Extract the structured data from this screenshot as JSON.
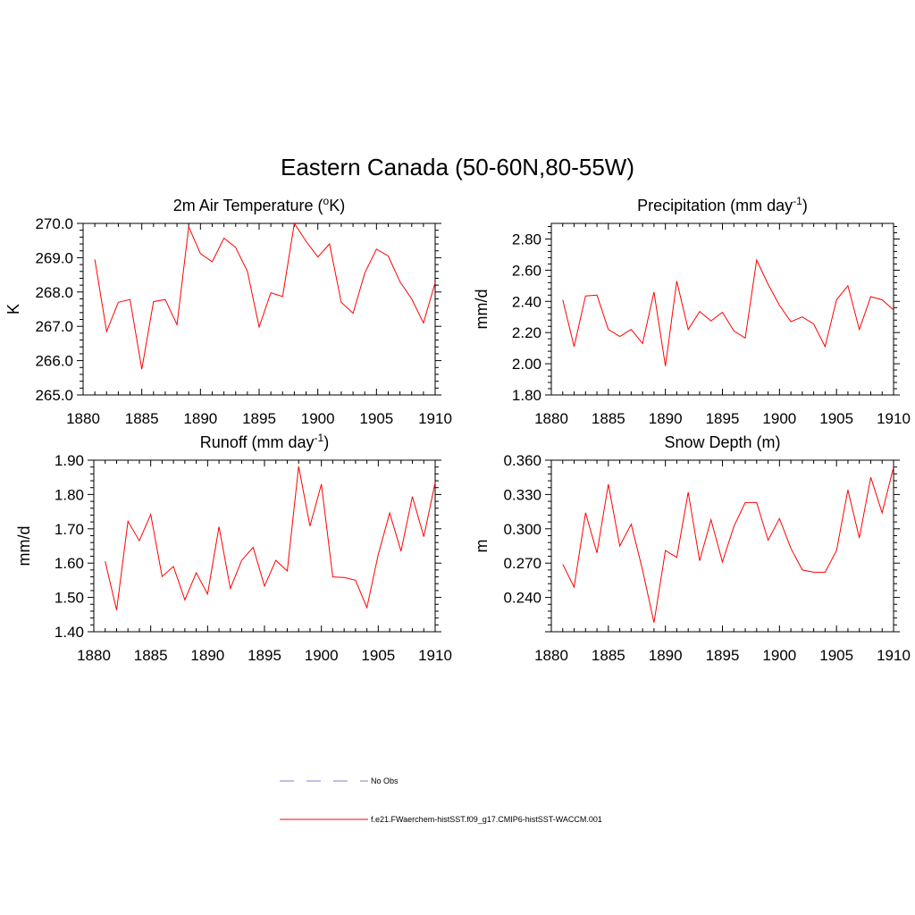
{
  "figure": {
    "title": "Eastern Canada (50-60N,80-55W)",
    "legend": [
      {
        "label": "No Obs",
        "color": "#9999dd",
        "style": "dashed"
      },
      {
        "label": "f.e21.FWaerchem-histSST.f09_g17.CMIP6-histSST-WACCM.001",
        "color": "#ff0000",
        "style": "solid"
      }
    ]
  },
  "chart_data": [
    {
      "type": "line",
      "title": "2m Air Temperature (",
      "title_sup": "o",
      "title_tail": "K)",
      "ylabel": "K",
      "xlim": [
        1880,
        1910
      ],
      "ylim": [
        265,
        270
      ],
      "xticks": [
        "1880",
        "1885",
        "1890",
        "1895",
        "1900",
        "1905",
        "1910"
      ],
      "yticks": [
        "265.0",
        "266.0",
        "267.0",
        "268.0",
        "269.0",
        "270.0"
      ],
      "color": "#ff0000",
      "series": [
        {
          "x": [
            1881,
            1882,
            1883,
            1884,
            1885,
            1886,
            1887,
            1888,
            1889,
            1890,
            1891,
            1892,
            1893,
            1894,
            1895,
            1896,
            1897,
            1898,
            1899,
            1900,
            1901,
            1902,
            1903,
            1904,
            1905,
            1906,
            1907,
            1908,
            1909,
            1910
          ],
          "values": [
            268.95,
            266.85,
            267.7,
            267.78,
            265.75,
            267.72,
            267.78,
            267.05,
            269.9,
            269.12,
            268.88,
            269.57,
            269.3,
            268.6,
            266.98,
            267.98,
            267.87,
            270.0,
            269.48,
            269.02,
            269.4,
            267.7,
            267.38,
            268.55,
            269.25,
            269.05,
            268.3,
            267.8,
            267.1,
            268.27
          ]
        }
      ]
    },
    {
      "type": "line",
      "title": "Precipitation (mm day",
      "title_sup": "-1",
      "title_tail": ")",
      "ylabel": "mm/d",
      "xlim": [
        1880,
        1910
      ],
      "ylim": [
        1.8,
        2.9
      ],
      "xticks": [
        "1880",
        "1885",
        "1890",
        "1895",
        "1900",
        "1905",
        "1910"
      ],
      "yticks": [
        "1.80",
        "2.00",
        "2.20",
        "2.40",
        "2.60",
        "2.80"
      ],
      "color": "#ff0000",
      "series": [
        {
          "x": [
            1881,
            1882,
            1883,
            1884,
            1885,
            1886,
            1887,
            1888,
            1889,
            1890,
            1891,
            1892,
            1893,
            1894,
            1895,
            1896,
            1897,
            1898,
            1899,
            1900,
            1901,
            1902,
            1903,
            1904,
            1905,
            1906,
            1907,
            1908,
            1909,
            1910
          ],
          "values": [
            2.41,
            2.11,
            2.435,
            2.44,
            2.22,
            2.175,
            2.22,
            2.13,
            2.46,
            1.985,
            2.53,
            2.22,
            2.335,
            2.275,
            2.33,
            2.21,
            2.165,
            2.665,
            2.51,
            2.375,
            2.27,
            2.3,
            2.255,
            2.11,
            2.41,
            2.5,
            2.22,
            2.43,
            2.41,
            2.345
          ]
        }
      ]
    },
    {
      "type": "line",
      "title": "Runoff (mm day",
      "title_sup": "-1",
      "title_tail": ")",
      "ylabel": "mm/d",
      "xlim": [
        1880,
        1910
      ],
      "ylim": [
        1.4,
        1.9
      ],
      "xticks": [
        "1880",
        "1885",
        "1890",
        "1895",
        "1900",
        "1905",
        "1910"
      ],
      "yticks": [
        "1.40",
        "1.50",
        "1.60",
        "1.70",
        "1.80",
        "1.90"
      ],
      "color": "#ff0000",
      "series": [
        {
          "x": [
            1881,
            1882,
            1883,
            1884,
            1885,
            1886,
            1887,
            1888,
            1889,
            1890,
            1891,
            1892,
            1893,
            1894,
            1895,
            1896,
            1897,
            1898,
            1899,
            1900,
            1901,
            1902,
            1903,
            1904,
            1905,
            1906,
            1907,
            1908,
            1909,
            1910
          ],
          "values": [
            1.605,
            1.463,
            1.722,
            1.665,
            1.742,
            1.561,
            1.59,
            1.493,
            1.572,
            1.51,
            1.706,
            1.526,
            1.608,
            1.646,
            1.533,
            1.608,
            1.577,
            1.882,
            1.708,
            1.83,
            1.56,
            1.558,
            1.55,
            1.47,
            1.625,
            1.746,
            1.635,
            1.794,
            1.677,
            1.835
          ]
        }
      ]
    },
    {
      "type": "line",
      "title": "Snow Depth (m)",
      "title_sup": "",
      "title_tail": "",
      "ylabel": "m",
      "xlim": [
        1880,
        1910
      ],
      "ylim": [
        0.21,
        0.36
      ],
      "xticks": [
        "1880",
        "1885",
        "1890",
        "1895",
        "1900",
        "1905",
        "1910"
      ],
      "yticks": [
        "0.240",
        "0.270",
        "0.300",
        "0.330",
        "0.360"
      ],
      "color": "#ff0000",
      "series": [
        {
          "x": [
            1881,
            1882,
            1883,
            1884,
            1885,
            1886,
            1887,
            1888,
            1889,
            1890,
            1891,
            1892,
            1893,
            1894,
            1895,
            1896,
            1897,
            1898,
            1899,
            1900,
            1901,
            1902,
            1903,
            1904,
            1905,
            1906,
            1907,
            1908,
            1909,
            1910
          ],
          "values": [
            0.269,
            0.249,
            0.314,
            0.279,
            0.339,
            0.285,
            0.304,
            0.264,
            0.218,
            0.281,
            0.275,
            0.332,
            0.272,
            0.308,
            0.271,
            0.302,
            0.323,
            0.323,
            0.29,
            0.309,
            0.283,
            0.264,
            0.262,
            0.262,
            0.281,
            0.334,
            0.292,
            0.345,
            0.314,
            0.354
          ]
        }
      ]
    }
  ]
}
